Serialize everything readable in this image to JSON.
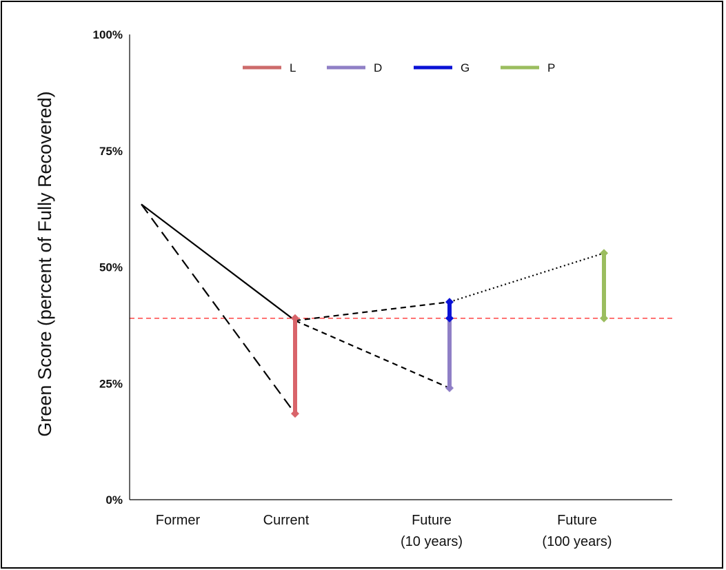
{
  "chart_data": {
    "type": "line",
    "ylabel": "Green Score (percent of Fully Recovered)",
    "xlabel": "",
    "ylim": [
      0,
      100
    ],
    "yticks": [
      "0%",
      "25%",
      "50%",
      "75%",
      "100%"
    ],
    "ytick_values": [
      0,
      25,
      50,
      75,
      100
    ],
    "categories": [
      {
        "lines": [
          "Former"
        ]
      },
      {
        "lines": [
          "Current"
        ]
      },
      {
        "lines": [
          "Future",
          "(10 years)"
        ]
      },
      {
        "lines": [
          "Future",
          "(100 years)"
        ]
      }
    ],
    "reference_line": {
      "y": 39,
      "color": "#ff4444",
      "style": "dashed"
    },
    "trajectories": [
      {
        "style": "solid",
        "points": [
          [
            0,
            63.5
          ],
          [
            1,
            38.5
          ]
        ]
      },
      {
        "style": "longdash",
        "points": [
          [
            0,
            63.5
          ],
          [
            1,
            18.5
          ]
        ]
      },
      {
        "style": "dashed",
        "points": [
          [
            1,
            38.5
          ],
          [
            2,
            42.5
          ]
        ]
      },
      {
        "style": "dashed",
        "points": [
          [
            1,
            38.5
          ],
          [
            2,
            24
          ]
        ]
      },
      {
        "style": "dotted",
        "points": [
          [
            2,
            42.5
          ],
          [
            3,
            53
          ]
        ]
      }
    ],
    "bars": [
      {
        "name": "L",
        "x": 1,
        "from": 39,
        "to": 18.5,
        "color": "#d9646a"
      },
      {
        "name": "D",
        "x": 2,
        "from": 39,
        "to": 24,
        "color": "#8f7fc6"
      },
      {
        "name": "G",
        "x": 2,
        "from": 39,
        "to": 42.5,
        "color": "#0a12d6"
      },
      {
        "name": "P",
        "x": 3,
        "from": 39,
        "to": 53,
        "color": "#9bbd5f"
      }
    ],
    "legend": {
      "position": "top",
      "entries": [
        {
          "label": "L",
          "color": "#cd6b6b"
        },
        {
          "label": "D",
          "color": "#8f7fc6"
        },
        {
          "label": "G",
          "color": "#0a12d6"
        },
        {
          "label": "P",
          "color": "#9bbd5f"
        }
      ]
    }
  }
}
